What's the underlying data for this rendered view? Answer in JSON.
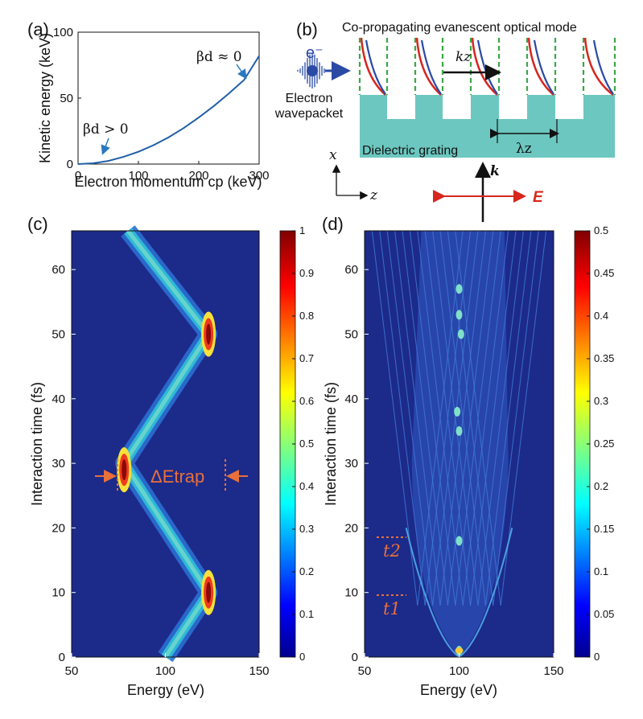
{
  "panels": {
    "a": {
      "label": "(a)",
      "ylabel": "Kinetic energy (keV)",
      "xlabel": "Electron momentum cp (keV)",
      "ann_low": "βd > 0",
      "ann_high": "βd ≈ 0"
    },
    "b": {
      "label": "(b)",
      "mode_title": "Co-propagating evanescent optical mode",
      "electron_symbol": "e⁻",
      "electron_label_1": "Electron",
      "electron_label_2": "wavepacket",
      "grating_label": "Dielectric grating",
      "kz_label": "kz",
      "lambda_label": "λz",
      "axis_x": "x",
      "axis_z": "z",
      "k_label": "k",
      "e_label": "E"
    },
    "c": {
      "label": "(c)",
      "ylabel": "Interaction time (fs)",
      "xlabel": "Energy (eV)",
      "annotation": "ΔEtrap"
    },
    "d": {
      "label": "(d)",
      "ylabel": "Interaction time (fs)",
      "xlabel": "Energy (eV)",
      "t1": "t1",
      "t2": "t2"
    }
  },
  "colors": {
    "line": "#1f5fa8",
    "heat_bg": "#1c2a8a",
    "grating": "#6cc7c0",
    "red": "#d7261e",
    "green": "#3aa845",
    "orange": "#e8703a",
    "blue_wave": "#2a4aa6"
  },
  "chart_data": [
    {
      "type": "line",
      "panel": "a",
      "xlabel": "Electron momentum cp (keV)",
      "ylabel": "Kinetic energy (keV)",
      "xlim": [
        0,
        300
      ],
      "ylim": [
        0,
        100
      ],
      "xticks": [
        0,
        100,
        200,
        300
      ],
      "yticks": [
        0,
        50,
        100
      ],
      "series": [
        {
          "x": [
            0,
            25,
            50,
            75,
            100,
            125,
            150,
            175,
            200,
            225,
            250,
            275,
            300
          ],
          "y": [
            0,
            0.6,
            2.4,
            5.4,
            9.3,
            14.3,
            20.3,
            27.3,
            35.3,
            44.0,
            53.6,
            63.8,
            82.0
          ]
        }
      ]
    },
    {
      "type": "heatmap",
      "panel": "c",
      "xlabel": "Energy (eV)",
      "ylabel": "Interaction time (fs)",
      "xlim": [
        50,
        150
      ],
      "ylim": [
        0,
        66
      ],
      "xticks": [
        50,
        100,
        150
      ],
      "yticks": [
        0,
        10,
        20,
        30,
        40,
        50,
        60
      ],
      "colorbar": {
        "min": 0,
        "max": 1,
        "ticks": [
          "0",
          "0.1",
          "0.2",
          "0.3",
          "0.4",
          "0.5",
          "0.6",
          "0.7",
          "0.8",
          "0.9",
          "1"
        ]
      },
      "trajectory": {
        "t": [
          0,
          10,
          30,
          50,
          66
        ],
        "energy": [
          100,
          123,
          78,
          123,
          80
        ]
      }
    },
    {
      "type": "heatmap",
      "panel": "d",
      "xlabel": "Energy (eV)",
      "ylabel": "Interaction time (fs)",
      "xlim": [
        50,
        150
      ],
      "ylim": [
        0,
        66
      ],
      "xticks": [
        50,
        100,
        150
      ],
      "yticks": [
        0,
        10,
        20,
        30,
        40,
        50,
        60
      ],
      "colorbar": {
        "min": 0,
        "max": 0.5,
        "ticks": [
          "0",
          "0.05",
          "0.1",
          "0.15",
          "0.2",
          "0.25",
          "0.3",
          "0.35",
          "0.4",
          "0.45",
          "0.5"
        ]
      },
      "markers": {
        "t1": 9.5,
        "t2": 18.5
      }
    }
  ]
}
